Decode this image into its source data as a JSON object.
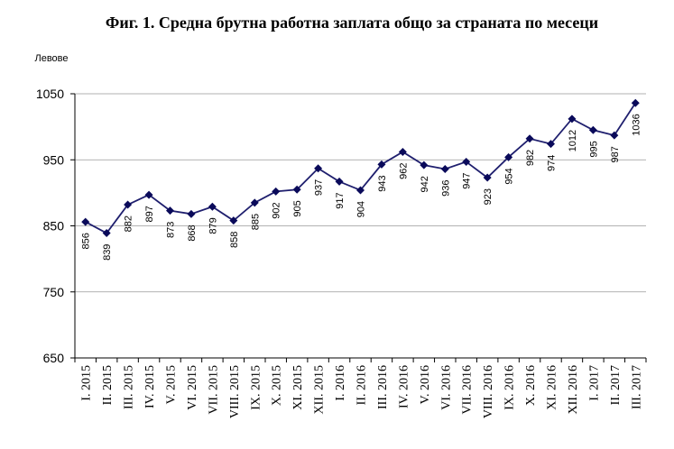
{
  "chart_data": {
    "type": "line",
    "title": "Фиг. 1. Средна брутна работна заплата общо за страната по месеци",
    "ylabel": "Левове",
    "xlabel": "",
    "ylim": [
      650,
      1050
    ],
    "yticks": [
      "650",
      "750",
      "850",
      "950",
      "1050"
    ],
    "grid": true,
    "legend": "none",
    "line_color": "#1f1f6e",
    "marker_color": "#0a0a5a",
    "categories": [
      "I. 2015",
      "II. 2015",
      "III. 2015",
      "IV. 2015",
      "V. 2015",
      "VI. 2015",
      "VII. 2015",
      "VIII. 2015",
      "IX. 2015",
      "X. 2015",
      "XI. 2015",
      "XII. 2015",
      "I. 2016",
      "II. 2016",
      "III. 2016",
      "IV. 2016",
      "V. 2016",
      "VI. 2016",
      "VII. 2016",
      "VIII. 2016",
      "IX. 2016",
      "X. 2016",
      "XI. 2016",
      "XII. 2016",
      "I. 2017",
      "II. 2017",
      "III. 2017"
    ],
    "values": [
      856,
      839,
      882,
      897,
      873,
      868,
      879,
      858,
      885,
      902,
      905,
      937,
      917,
      904,
      943,
      962,
      942,
      936,
      947,
      923,
      954,
      982,
      974,
      1012,
      995,
      987,
      1036
    ],
    "value_labels": [
      "856",
      "839",
      "882",
      "897",
      "873",
      "868",
      "879",
      "858",
      "885",
      "902",
      "905",
      "937",
      "917",
      "904",
      "943",
      "962",
      "942",
      "936",
      "947",
      "923",
      "954",
      "982",
      "974",
      "1012",
      "995",
      "987",
      "1036"
    ]
  }
}
